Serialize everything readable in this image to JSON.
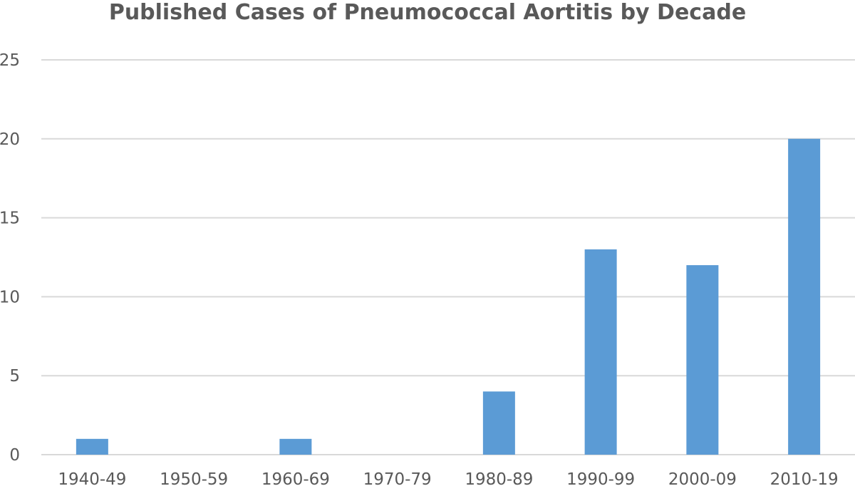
{
  "chart_data": {
    "type": "bar",
    "title": "Published Cases of Pneumococcal Aortitis by Decade",
    "xlabel": "",
    "ylabel": "",
    "categories": [
      "1940-49",
      "1950-59",
      "1960-69",
      "1970-79",
      "1980-89",
      "1990-99",
      "2000-09",
      "2010-19"
    ],
    "values": [
      1,
      0,
      1,
      0,
      4,
      13,
      12,
      20
    ],
    "ylim": [
      0,
      25
    ],
    "yticks": [
      "0",
      "5",
      "10",
      "15",
      "20",
      "25"
    ],
    "grid": true,
    "legend": "none",
    "bar_color": "#5b9bd5",
    "grid_color": "#d9d9d9",
    "text_color": "#595959"
  }
}
